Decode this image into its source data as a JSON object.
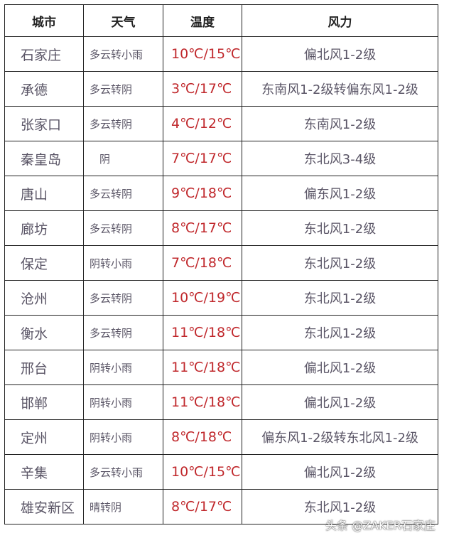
{
  "headers": [
    "城市",
    "天气",
    "温度",
    "风力"
  ],
  "rows": [
    {
      "city": "石家庄",
      "weather": "多云转小雨",
      "temp": "10℃/15℃",
      "wind": "偏北风1-2级"
    },
    {
      "city": "承德",
      "weather": "多云转阴",
      "temp": "3℃/17℃",
      "wind": "东南风1-2级转偏东风1-2级"
    },
    {
      "city": "张家口",
      "weather": "多云转阴",
      "temp": "4℃/12℃",
      "wind": "东南风1-2级"
    },
    {
      "city": "秦皇岛",
      "weather": "阴",
      "temp": "7℃/17℃",
      "wind": "东北风3-4级"
    },
    {
      "city": "唐山",
      "weather": "多云转阴",
      "temp": "9℃/18℃",
      "wind": "偏东风1-2级"
    },
    {
      "city": "廊坊",
      "weather": "多云转阴",
      "temp": "8℃/17℃",
      "wind": "东北风1-2级"
    },
    {
      "city": "保定",
      "weather": "阴转小雨",
      "temp": "7℃/18℃",
      "wind": "东北风1-2级"
    },
    {
      "city": "沧州",
      "weather": "多云转阴",
      "temp": "10℃/19℃",
      "wind": "东北风1-2级"
    },
    {
      "city": "衡水",
      "weather": "多云转阴",
      "temp": "11℃/18℃",
      "wind": "东北风1-2级"
    },
    {
      "city": "邢台",
      "weather": "阴转小雨",
      "temp": "11℃/18℃",
      "wind": "偏北风1-2级"
    },
    {
      "city": "邯郸",
      "weather": "阴转小雨",
      "temp": "11℃/18℃",
      "wind": "偏北风1-2级"
    },
    {
      "city": "定州",
      "weather": "阴转小雨",
      "temp": "8℃/18℃",
      "wind": "偏东风1-2级转东北风1-2级"
    },
    {
      "city": "辛集",
      "weather": "多云转小雨",
      "temp": "10℃/15℃",
      "wind": "偏北风1-2级"
    },
    {
      "city": "雄安新区",
      "weather": "晴转阴",
      "temp": "8℃/17℃",
      "wind": "东北风1-2级"
    }
  ],
  "watermark": "头条 @ZAKER石家庄",
  "colors": {
    "temperature": "#c0282c",
    "text": "#5a5566"
  }
}
